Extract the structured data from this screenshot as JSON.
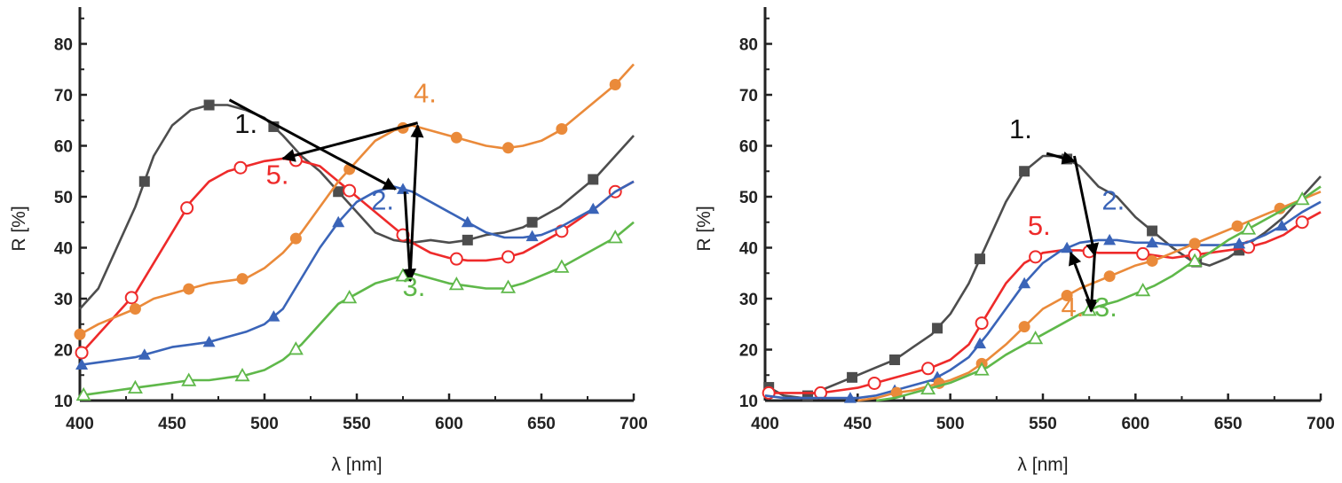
{
  "chart_data": [
    {
      "type": "line",
      "xlabel": "λ [nm]",
      "ylabel": "R [%]",
      "xlim": [
        400,
        700
      ],
      "ylim": [
        10,
        85
      ],
      "xticks": [
        "400",
        "450",
        "500",
        "550",
        "600",
        "650",
        "700"
      ],
      "yticks": [
        "10",
        "20",
        "30",
        "40",
        "50",
        "60",
        "70",
        "80"
      ],
      "series": [
        {
          "label": "1.",
          "color": "#4d4d4d",
          "marker": "square-filled",
          "x": [
            400,
            410,
            420,
            430,
            440,
            450,
            460,
            470,
            480,
            490,
            500,
            510,
            520,
            530,
            540,
            550,
            560,
            570,
            580,
            590,
            600,
            610,
            620,
            630,
            640,
            650,
            660,
            670,
            680,
            690,
            700
          ],
          "y": [
            28,
            32,
            40,
            48,
            58,
            64,
            67,
            68,
            68,
            67,
            65.5,
            62,
            58,
            55,
            51,
            47,
            43,
            41.5,
            41,
            41.5,
            41,
            41.5,
            42.5,
            43,
            44,
            46,
            48,
            51,
            54,
            58,
            62
          ],
          "markers_x": [
            435,
            470,
            505,
            540,
            610,
            645,
            678
          ]
        },
        {
          "label": "5.",
          "color": "#ee2a2a",
          "marker": "circle-open",
          "x": [
            400,
            410,
            420,
            430,
            440,
            450,
            460,
            470,
            480,
            490,
            500,
            510,
            520,
            530,
            540,
            550,
            560,
            570,
            580,
            590,
            600,
            610,
            620,
            630,
            640,
            650,
            660,
            670,
            680,
            690,
            700
          ],
          "y": [
            19,
            23,
            27,
            31,
            37,
            43,
            49,
            53,
            55,
            56,
            57,
            57.5,
            57,
            56,
            53,
            50,
            47,
            44,
            41,
            39,
            38,
            37.5,
            37.5,
            38,
            39,
            41,
            43,
            45.5,
            48,
            51,
            53
          ],
          "markers_x": [
            401,
            428,
            458,
            487,
            517,
            546,
            575,
            604,
            632,
            661,
            690
          ]
        },
        {
          "label": "4.",
          "color": "#ea8a3a",
          "marker": "circle-filled",
          "x": [
            400,
            410,
            420,
            430,
            440,
            450,
            460,
            470,
            480,
            490,
            500,
            510,
            520,
            530,
            540,
            550,
            560,
            570,
            580,
            590,
            600,
            610,
            620,
            630,
            640,
            650,
            660,
            670,
            680,
            690,
            700
          ],
          "y": [
            23,
            25,
            26.5,
            28,
            30,
            31,
            32,
            33,
            33.5,
            34,
            36,
            39,
            43,
            48,
            53,
            57,
            61,
            63,
            64,
            63,
            62,
            61,
            60,
            59.5,
            60,
            61,
            63,
            66,
            69,
            72,
            76
          ],
          "markers_x": [
            400,
            430,
            459,
            488,
            517,
            546,
            575,
            604,
            632,
            661,
            690
          ]
        },
        {
          "label": "2.",
          "color": "#3a64b8",
          "marker": "triangle-filled",
          "x": [
            400,
            410,
            420,
            430,
            440,
            450,
            460,
            470,
            480,
            490,
            500,
            510,
            520,
            530,
            540,
            550,
            560,
            570,
            580,
            590,
            600,
            610,
            620,
            630,
            640,
            650,
            660,
            670,
            680,
            690,
            700
          ],
          "y": [
            17,
            17.5,
            18,
            18.5,
            19.5,
            20.5,
            21,
            21.5,
            22.5,
            23.5,
            25,
            28,
            34,
            40,
            45,
            49,
            51,
            52,
            51,
            49,
            47,
            45,
            43,
            42,
            42,
            42.5,
            44,
            46,
            48,
            51,
            53
          ],
          "markers_x": [
            401,
            435,
            470,
            505,
            540,
            575,
            610,
            645,
            678
          ]
        },
        {
          "label": "3.",
          "color": "#5fb84a",
          "marker": "triangle-open",
          "x": [
            400,
            410,
            420,
            430,
            440,
            450,
            460,
            470,
            480,
            490,
            500,
            510,
            520,
            530,
            540,
            550,
            560,
            570,
            580,
            590,
            600,
            610,
            620,
            630,
            640,
            650,
            660,
            670,
            680,
            690,
            700
          ],
          "y": [
            11,
            11.5,
            12,
            12.5,
            13,
            13.5,
            14,
            14,
            14.5,
            15,
            16,
            18,
            21,
            25,
            29,
            31,
            33,
            34,
            35,
            34,
            33,
            32.5,
            32,
            32,
            33,
            34.5,
            36,
            38,
            40,
            42,
            45
          ],
          "markers_x": [
            402,
            430,
            459,
            488,
            517,
            546,
            575,
            604,
            632,
            661,
            690
          ]
        }
      ],
      "annotations": [
        {
          "text": "1.",
          "x": 490,
          "y": 62.5,
          "color": "#111111"
        },
        {
          "text": "4.",
          "x": 587,
          "y": 68.5,
          "color": "#ea8a3a"
        },
        {
          "text": "5.",
          "x": 507,
          "y": 52.5,
          "color": "#ee2a2a"
        },
        {
          "text": "2.",
          "x": 564,
          "y": 47.5,
          "color": "#3a64b8"
        },
        {
          "text": "3.",
          "x": 581,
          "y": 30.5,
          "color": "#5fb84a"
        }
      ],
      "arrows": [
        {
          "from": [
            481,
            69
          ],
          "to": [
            571,
            51.5
          ]
        },
        {
          "from": [
            576,
            51
          ],
          "to": [
            579,
            33.5
          ]
        },
        {
          "from": [
            579,
            35
          ],
          "to": [
            583,
            64
          ]
        },
        {
          "from": [
            583,
            64.5
          ],
          "to": [
            510,
            57.5
          ]
        }
      ]
    },
    {
      "type": "line",
      "xlabel": "λ [nm]",
      "ylabel": "R [%]",
      "xlim": [
        400,
        700
      ],
      "ylim": [
        10,
        85
      ],
      "xticks": [
        "400",
        "450",
        "500",
        "550",
        "600",
        "650",
        "700"
      ],
      "yticks": [
        "10",
        "20",
        "30",
        "40",
        "50",
        "60",
        "70",
        "80"
      ],
      "series": [
        {
          "label": "1.",
          "color": "#4d4d4d",
          "marker": "square-filled",
          "x": [
            400,
            410,
            420,
            430,
            440,
            450,
            460,
            470,
            480,
            490,
            500,
            510,
            520,
            530,
            540,
            550,
            560,
            570,
            580,
            590,
            600,
            610,
            620,
            630,
            640,
            650,
            660,
            670,
            680,
            690,
            700
          ],
          "y": [
            13,
            11,
            10.5,
            12,
            13.5,
            15,
            16.5,
            18,
            20.5,
            23,
            27,
            33,
            41,
            49,
            55,
            58,
            58,
            56,
            52,
            50,
            46,
            43,
            40,
            37.5,
            36.5,
            38,
            40.5,
            43,
            46,
            50,
            54
          ],
          "markers_x": [
            402,
            423,
            447,
            470,
            493,
            516,
            540,
            563,
            609,
            633,
            656
          ]
        },
        {
          "label": "5.",
          "color": "#ee2a2a",
          "marker": "circle-open",
          "x": [
            400,
            410,
            420,
            430,
            440,
            450,
            460,
            470,
            480,
            490,
            500,
            510,
            520,
            530,
            540,
            550,
            560,
            570,
            580,
            590,
            600,
            610,
            620,
            630,
            640,
            650,
            660,
            670,
            680,
            690,
            700
          ],
          "y": [
            11.5,
            11.5,
            11.5,
            11.5,
            12,
            12.5,
            13.5,
            14.5,
            15.5,
            16.5,
            18,
            21,
            27,
            33,
            37,
            39,
            39.5,
            39.5,
            39,
            39,
            39,
            38.5,
            38,
            38.5,
            39,
            39.5,
            40,
            41,
            42.5,
            45,
            47
          ],
          "markers_x": [
            402,
            430,
            459,
            488,
            517,
            546,
            575,
            604,
            632,
            661,
            690
          ]
        },
        {
          "label": "2.",
          "color": "#3a64b8",
          "marker": "triangle-filled",
          "x": [
            400,
            410,
            420,
            430,
            440,
            450,
            460,
            470,
            480,
            490,
            500,
            510,
            520,
            530,
            540,
            550,
            560,
            570,
            580,
            590,
            600,
            610,
            620,
            630,
            640,
            650,
            660,
            670,
            680,
            690,
            700
          ],
          "y": [
            11,
            10.5,
            10.5,
            10.5,
            10.5,
            10.5,
            11,
            12,
            13,
            14,
            16,
            18.5,
            23,
            28,
            33,
            37,
            39.5,
            41,
            41.5,
            41.5,
            41,
            41,
            40.5,
            40.5,
            40.5,
            40.5,
            41,
            42.5,
            44.5,
            47,
            49
          ],
          "markers_x": [
            446,
            470,
            493,
            516,
            540,
            563,
            586,
            609,
            656,
            679
          ]
        },
        {
          "label": "4.",
          "color": "#ea8a3a",
          "marker": "circle-filled",
          "x": [
            450,
            460,
            470,
            480,
            490,
            500,
            510,
            520,
            530,
            540,
            550,
            560,
            570,
            580,
            590,
            600,
            610,
            620,
            630,
            640,
            650,
            660,
            670,
            680,
            690,
            700
          ],
          "y": [
            10,
            10.5,
            11.5,
            12,
            13,
            14,
            15.5,
            18,
            21,
            24.5,
            28,
            30,
            32,
            33.5,
            35,
            36.5,
            37.5,
            39,
            40.5,
            42,
            43.5,
            45,
            46.5,
            48,
            49.5,
            51
          ],
          "markers_x": [
            471,
            494,
            517,
            540,
            563,
            586,
            609,
            632,
            655,
            678
          ]
        },
        {
          "label": "3.",
          "color": "#5fb84a",
          "marker": "triangle-open",
          "x": [
            460,
            470,
            480,
            490,
            500,
            510,
            520,
            530,
            540,
            550,
            560,
            570,
            580,
            590,
            600,
            610,
            620,
            630,
            640,
            650,
            660,
            670,
            680,
            690,
            700
          ],
          "y": [
            10,
            10.5,
            11.5,
            12.5,
            13.5,
            15,
            16.5,
            19,
            21,
            23,
            25,
            27,
            28.5,
            29.5,
            31,
            32.5,
            34.5,
            37,
            39,
            41.5,
            43.5,
            45.5,
            47.5,
            49.5,
            52
          ],
          "markers_x": [
            488,
            517,
            546,
            575,
            604,
            632,
            661,
            690
          ]
        }
      ],
      "annotations": [
        {
          "text": "1.",
          "x": 538,
          "y": 61.5,
          "color": "#111111"
        },
        {
          "text": "2.",
          "x": 588,
          "y": 47.5,
          "color": "#3a64b8"
        },
        {
          "text": "5.",
          "x": 548,
          "y": 42.5,
          "color": "#ee2a2a"
        },
        {
          "text": "4.",
          "x": 566,
          "y": 26.5,
          "color": "#ea8a3a"
        },
        {
          "text": "3.",
          "x": 584,
          "y": 26.5,
          "color": "#5fb84a"
        }
      ],
      "arrows": [
        {
          "from": [
            552,
            58.5
          ],
          "to": [
            567,
            57
          ]
        },
        {
          "from": [
            567,
            58
          ],
          "to": [
            578,
            38.5
          ]
        },
        {
          "from": [
            578,
            39
          ],
          "to": [
            576,
            27.5
          ]
        },
        {
          "from": [
            576,
            28.5
          ],
          "to": [
            565,
            39
          ]
        }
      ]
    }
  ]
}
